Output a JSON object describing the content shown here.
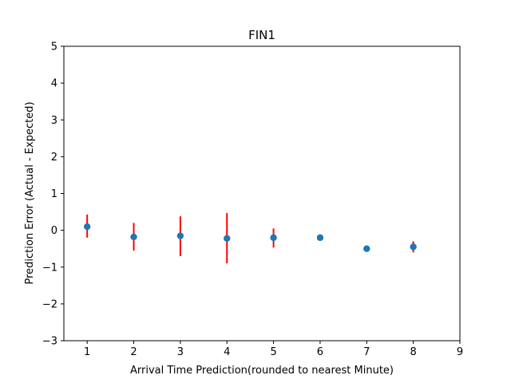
{
  "chart_data": {
    "type": "scatter",
    "title": "FIN1",
    "xlabel": "Arrival Time Prediction(rounded to nearest Minute)",
    "ylabel": "Prediction Error (Actual - Expected)",
    "xlim": [
      0.5,
      9
    ],
    "ylim": [
      -3,
      5
    ],
    "xticks": [
      1,
      2,
      3,
      4,
      5,
      6,
      7,
      8,
      9
    ],
    "yticks": [
      -3,
      -2,
      -1,
      0,
      1,
      2,
      3,
      4,
      5
    ],
    "ytick_labels": [
      "−3",
      "−2",
      "−1",
      "0",
      "1",
      "2",
      "3",
      "4",
      "5"
    ],
    "grid": false,
    "marker_color": "#1f77b4",
    "errorbar_color": "#ff0000",
    "points": [
      {
        "x": 1,
        "y": 0.1,
        "err_low": -0.2,
        "err_high": 0.43
      },
      {
        "x": 2,
        "y": -0.18,
        "err_low": -0.55,
        "err_high": 0.2
      },
      {
        "x": 3,
        "y": -0.15,
        "err_low": -0.7,
        "err_high": 0.38
      },
      {
        "x": 4,
        "y": -0.22,
        "err_low": -0.9,
        "err_high": 0.47
      },
      {
        "x": 5,
        "y": -0.2,
        "err_low": -0.47,
        "err_high": 0.05
      },
      {
        "x": 6,
        "y": -0.2,
        "err_low": -0.2,
        "err_high": -0.2
      },
      {
        "x": 7,
        "y": -0.5,
        "err_low": -0.58,
        "err_high": -0.43
      },
      {
        "x": 8,
        "y": -0.45,
        "err_low": -0.6,
        "err_high": -0.3
      }
    ]
  }
}
